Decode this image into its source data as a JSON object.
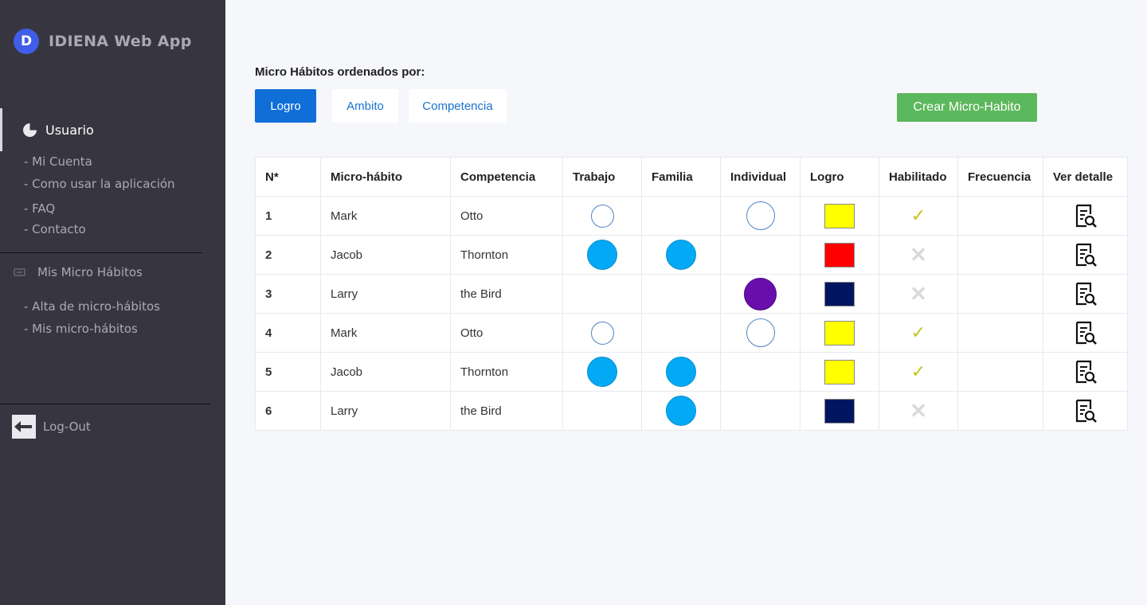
{
  "brand": {
    "logo_letter": "D",
    "name": "IDIENA Web App"
  },
  "sidebar": {
    "section1": {
      "icon": "pie-chart-icon",
      "label": "Usuario"
    },
    "section1_items": [
      "- Mi Cuenta",
      "- Como usar la aplicación",
      "- FAQ",
      "- Contacto"
    ],
    "section2": {
      "icon": "ticket-icon",
      "label": "Mis Micro Hábitos"
    },
    "section2_items": [
      "- Alta de micro-hábitos",
      "- Mis micro-hábitos"
    ],
    "logout": {
      "icon": "logout-icon",
      "label": "Log-Out"
    }
  },
  "main": {
    "order_title": "Micro Hábitos ordenados por:",
    "tabs": [
      {
        "label": "Logro",
        "active": true
      },
      {
        "label": "Ambito",
        "active": false
      },
      {
        "label": "Competencia",
        "active": false
      }
    ],
    "create_button": "Crear Micro-Habito"
  },
  "table": {
    "headers": [
      "N*",
      "Micro-hábito",
      "Competencia",
      "Trabajo",
      "Familia",
      "Individual",
      "Logro",
      "Habilitado",
      "Frecuencia",
      "Ver detalle"
    ],
    "rows": [
      {
        "n": "1",
        "habit": "Mark",
        "competencia": "Otto",
        "trabajo": "empty",
        "familia": "none",
        "individual": "empty",
        "logro": "#ffff00",
        "habilitado": true,
        "frecuencia": ""
      },
      {
        "n": "2",
        "habit": "Jacob",
        "competencia": "Thornton",
        "trabajo": "filled",
        "familia": "filled",
        "individual": "none",
        "logro": "#ff0000",
        "habilitado": false,
        "frecuencia": ""
      },
      {
        "n": "3",
        "habit": "Larry",
        "competencia": "the Bird",
        "trabajo": "none",
        "familia": "none",
        "individual": "purple",
        "logro": "#001560",
        "habilitado": false,
        "frecuencia": ""
      },
      {
        "n": "4",
        "habit": "Mark",
        "competencia": "Otto",
        "trabajo": "empty",
        "familia": "none",
        "individual": "empty",
        "logro": "#ffff00",
        "habilitado": true,
        "frecuencia": ""
      },
      {
        "n": "5",
        "habit": "Jacob",
        "competencia": "Thornton",
        "trabajo": "filled",
        "familia": "filled",
        "individual": "none",
        "logro": "#ffff00",
        "habilitado": true,
        "frecuencia": ""
      },
      {
        "n": "6",
        "habit": "Larry",
        "competencia": "the Bird",
        "trabajo": "none",
        "familia": "filled",
        "individual": "none",
        "logro": "#001560",
        "habilitado": false,
        "frecuencia": ""
      }
    ],
    "check_glyph": "✓",
    "cross_glyph": "✕",
    "detail_icon": "document-search-icon"
  }
}
